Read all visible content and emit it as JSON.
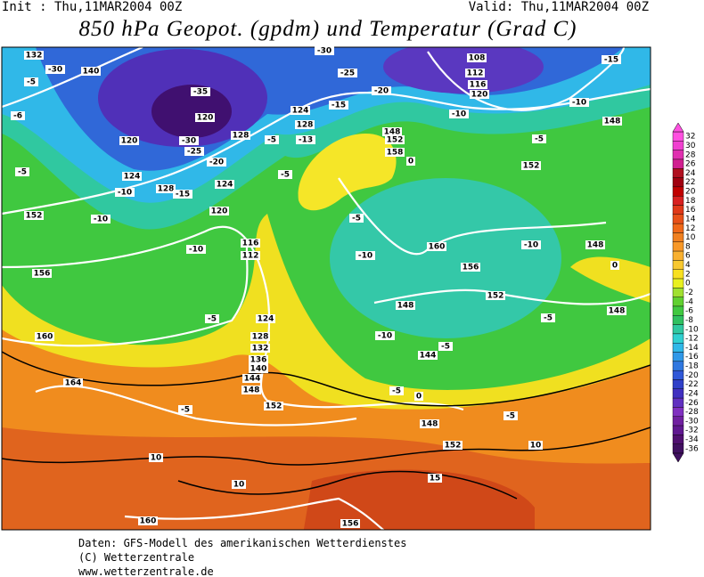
{
  "header": {
    "init": "Init : Thu,11MAR2004 00Z",
    "valid": "Valid: Thu,11MAR2004 00Z",
    "title": "850 hPa Geopot. (gpdm) und Temperatur (Grad C)"
  },
  "map": {
    "contour_labels": [
      "132",
      "-30",
      "140",
      "-5",
      "-35",
      "120",
      "-6",
      "120",
      "-30",
      "-25",
      "128",
      "-20",
      "124",
      "-10",
      "128",
      "-15",
      "124",
      "-5",
      "152",
      "-10",
      "120",
      "-10",
      "116",
      "112",
      "156",
      "-5",
      "124",
      "160",
      "128",
      "132",
      "136",
      "140",
      "144",
      "148",
      "164",
      "152",
      "-5",
      "10",
      "10",
      "160",
      "156",
      "15",
      "10",
      "152",
      "148",
      "-5",
      "0",
      "-5",
      "144",
      "-5",
      "-10",
      "148",
      "152",
      "-5",
      "148",
      "0",
      "148",
      "-10",
      "156",
      "160",
      "-10",
      "-5",
      "152",
      "-5",
      "-10",
      "148",
      "-15",
      "108",
      "112",
      "116",
      "120",
      "-10",
      "148",
      "152",
      "158",
      "0",
      "-5",
      "-13",
      "-15",
      "-20",
      "-25",
      "-30",
      "124",
      "128",
      "-5"
    ]
  },
  "colorbar": {
    "values": [
      32,
      30,
      28,
      26,
      24,
      22,
      20,
      18,
      16,
      14,
      12,
      10,
      8,
      6,
      4,
      2,
      0,
      -2,
      -4,
      -6,
      -8,
      -10,
      -12,
      -14,
      -16,
      -18,
      -20,
      -22,
      -24,
      -26,
      -28,
      -30,
      -32,
      -34,
      -36
    ],
    "colors": [
      "#ff50e0",
      "#f040d0",
      "#e030b0",
      "#d02090",
      "#b01020",
      "#a00010",
      "#c00000",
      "#d82020",
      "#e03818",
      "#e85018",
      "#f06818",
      "#f08020",
      "#f89828",
      "#f8b030",
      "#f8c830",
      "#f8e020",
      "#e8f020",
      "#a0e030",
      "#60d030",
      "#40c840",
      "#30c060",
      "#30c8a0",
      "#30d0d0",
      "#30b8e8",
      "#3098e8",
      "#3078e0",
      "#3058d8",
      "#3040c8",
      "#4030c0",
      "#6030c0",
      "#8030c0",
      "#7020a0",
      "#601890",
      "#501070",
      "#401060"
    ]
  },
  "footer": [
    "Daten: GFS-Modell des amerikanischen Wetterdienstes",
    "(C) Wetterzentrale",
    "www.wetterzentrale.de"
  ]
}
